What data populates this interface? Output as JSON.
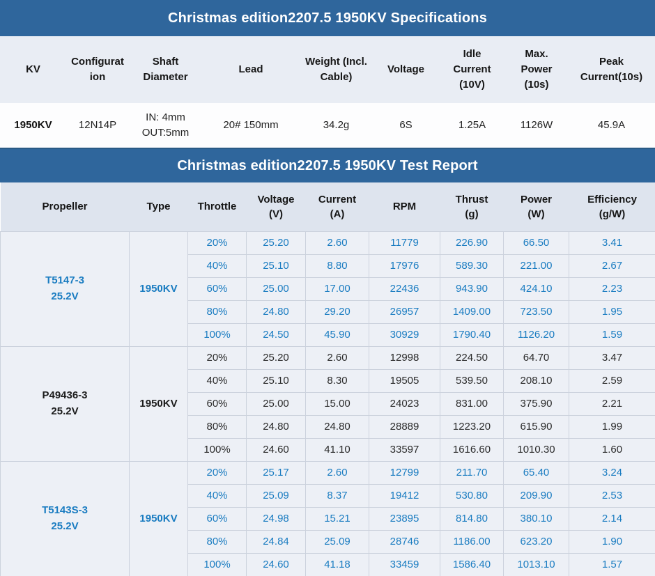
{
  "colors": {
    "header_blue": "#2f669c",
    "accent_blue_text": "#1a7cc1"
  },
  "spec_section": {
    "title": "Christmas edition2207.5 1950KV Specifications",
    "columns": [
      "KV",
      "Configuration",
      "Shaft Diameter",
      "Lead",
      "Weight (Incl. Cable)",
      "Voltage",
      "Idle Current (10V)",
      "Max. Power (10s)",
      "Peak Current(10s)"
    ],
    "row": {
      "kv": "1950KV",
      "configuration": "12N14P",
      "shaft_in": "IN: 4mm",
      "shaft_out": "OUT:5mm",
      "lead": "20# 150mm",
      "weight": "34.2g",
      "voltage": "6S",
      "idle_current": "1.25A",
      "max_power": "1126W",
      "peak_current": "45.9A"
    }
  },
  "test_section": {
    "title": "Christmas edition2207.5 1950KV Test Report",
    "columns": [
      {
        "label": "Propeller",
        "unit": ""
      },
      {
        "label": "Type",
        "unit": ""
      },
      {
        "label": "Throttle",
        "unit": ""
      },
      {
        "label": "Voltage",
        "unit": "(V)"
      },
      {
        "label": "Current",
        "unit": "(A)"
      },
      {
        "label": "RPM",
        "unit": ""
      },
      {
        "label": "Thrust",
        "unit": "(g)"
      },
      {
        "label": "Power",
        "unit": "(W)"
      },
      {
        "label": "Efficiency",
        "unit": "(g/W)"
      }
    ],
    "groups": [
      {
        "propeller": "T5147-3",
        "battery": "25.2V",
        "type": "1950KV",
        "text_style": "blue",
        "rows": [
          [
            "20%",
            "25.20",
            "2.60",
            "11779",
            "226.90",
            "66.50",
            "3.41"
          ],
          [
            "40%",
            "25.10",
            "8.80",
            "17976",
            "589.30",
            "221.00",
            "2.67"
          ],
          [
            "60%",
            "25.00",
            "17.00",
            "22436",
            "943.90",
            "424.10",
            "2.23"
          ],
          [
            "80%",
            "24.80",
            "29.20",
            "26957",
            "1409.00",
            "723.50",
            "1.95"
          ],
          [
            "100%",
            "24.50",
            "45.90",
            "30929",
            "1790.40",
            "1126.20",
            "1.59"
          ]
        ]
      },
      {
        "propeller": "P49436-3",
        "battery": "25.2V",
        "type": "1950KV",
        "text_style": "dark",
        "rows": [
          [
            "20%",
            "25.20",
            "2.60",
            "12998",
            "224.50",
            "64.70",
            "3.47"
          ],
          [
            "40%",
            "25.10",
            "8.30",
            "19505",
            "539.50",
            "208.10",
            "2.59"
          ],
          [
            "60%",
            "25.00",
            "15.00",
            "24023",
            "831.00",
            "375.90",
            "2.21"
          ],
          [
            "80%",
            "24.80",
            "24.80",
            "28889",
            "1223.20",
            "615.90",
            "1.99"
          ],
          [
            "100%",
            "24.60",
            "41.10",
            "33597",
            "1616.60",
            "1010.30",
            "1.60"
          ]
        ]
      },
      {
        "propeller": "T5143S-3",
        "battery": "25.2V",
        "type": "1950KV",
        "text_style": "blue",
        "rows": [
          [
            "20%",
            "25.17",
            "2.60",
            "12799",
            "211.70",
            "65.40",
            "3.24"
          ],
          [
            "40%",
            "25.09",
            "8.37",
            "19412",
            "530.80",
            "209.90",
            "2.53"
          ],
          [
            "60%",
            "24.98",
            "15.21",
            "23895",
            "814.80",
            "380.10",
            "2.14"
          ],
          [
            "80%",
            "24.84",
            "25.09",
            "28746",
            "1186.00",
            "623.20",
            "1.90"
          ],
          [
            "100%",
            "24.60",
            "41.18",
            "33459",
            "1586.40",
            "1013.10",
            "1.57"
          ]
        ]
      }
    ]
  }
}
